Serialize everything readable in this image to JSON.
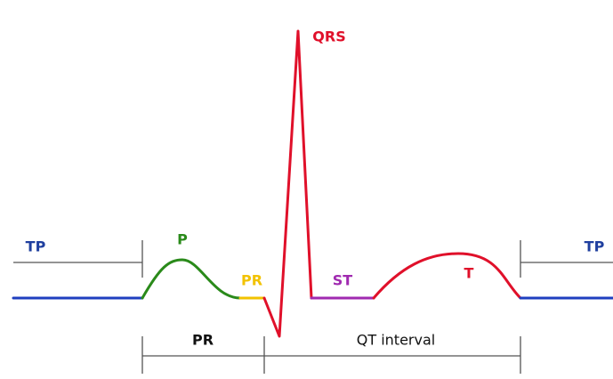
{
  "labels": {
    "tp_left": "TP",
    "p": "P",
    "pr_segment": "PR",
    "qrs": "QRS",
    "st": "ST",
    "t": "T",
    "tp_right": "TP"
  },
  "intervals": {
    "pr": "PR",
    "qt": "QT interval"
  }
}
